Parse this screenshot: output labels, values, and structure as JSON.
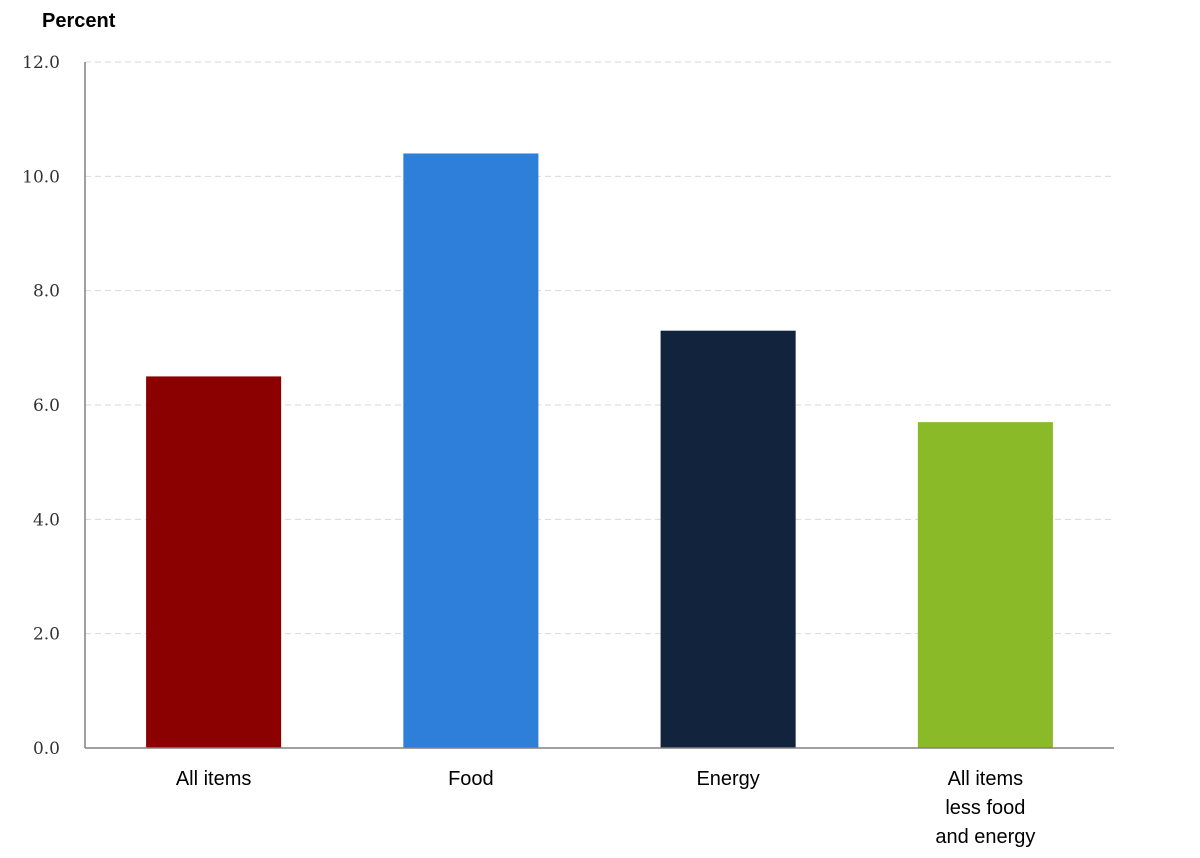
{
  "chart_data": {
    "type": "bar",
    "ylabel": "Percent",
    "categories": [
      [
        "All items"
      ],
      [
        "Food"
      ],
      [
        "Energy"
      ],
      [
        "All items",
        "less food",
        "and energy"
      ]
    ],
    "values": [
      6.5,
      10.4,
      7.3,
      5.7
    ],
    "colors": [
      "#8b0000",
      "#2e7fd9",
      "#12243d",
      "#8aba28"
    ],
    "ylim": [
      0,
      12
    ],
    "yticks": [
      "0.0",
      "2.0",
      "4.0",
      "6.0",
      "8.0",
      "10.0",
      "12.0"
    ],
    "grid": true
  }
}
